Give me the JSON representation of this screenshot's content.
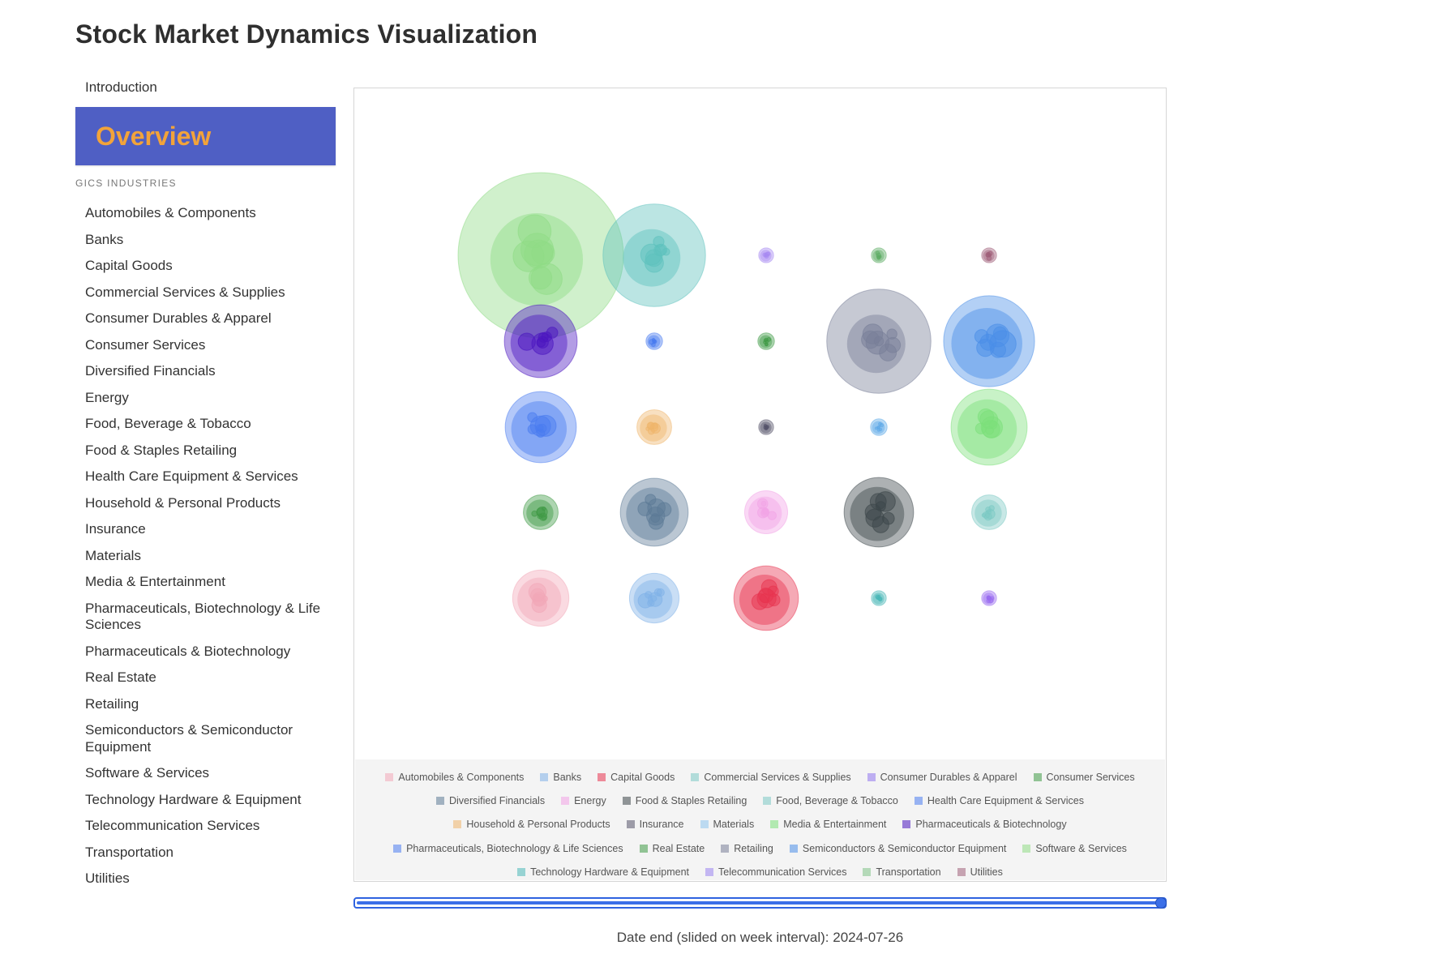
{
  "title": "Stock Market Dynamics Visualization",
  "nav": {
    "intro": "Introduction",
    "active": "Overview",
    "section_label": "GICS INDUSTRIES",
    "items": [
      "Automobiles & Components",
      "Banks",
      "Capital Goods",
      "Commercial Services & Supplies",
      "Consumer Durables & Apparel",
      "Consumer Services",
      "Diversified Financials",
      "Energy",
      "Food, Beverage & Tobacco",
      "Food & Staples Retailing",
      "Health Care Equipment & Services",
      "Household & Personal Products",
      "Insurance",
      "Materials",
      "Media & Entertainment",
      "Pharmaceuticals, Biotechnology & Life Sciences",
      "Pharmaceuticals & Biotechnology",
      "Real Estate",
      "Retailing",
      "Semiconductors & Semiconductor Equipment",
      "Software & Services",
      "Technology Hardware & Equipment",
      "Telecommunication Services",
      "Transportation",
      "Utilities"
    ]
  },
  "legend_rows": [
    [
      {
        "label": "Automobiles & Components",
        "color": "#f2a7b8"
      },
      {
        "label": "Banks",
        "color": "#7fb1e8"
      },
      {
        "label": "Capital Goods",
        "color": "#e8334f"
      },
      {
        "label": "Commercial Services & Supplies",
        "color": "#7cc9c4"
      },
      {
        "label": "Consumer Durables & Apparel",
        "color": "#8f74ee"
      },
      {
        "label": "Consumer Services",
        "color": "#3f9a45"
      }
    ],
    [
      {
        "label": "Diversified Financials",
        "color": "#5c7a96"
      },
      {
        "label": "Energy",
        "color": "#f2a3e6"
      },
      {
        "label": "Food & Staples Retailing",
        "color": "#3c4649"
      },
      {
        "label": "Food, Beverage & Tobacco",
        "color": "#7cc9c4"
      },
      {
        "label": "Health Care Equipment & Services",
        "color": "#4a7cf0"
      }
    ],
    [
      {
        "label": "Household & Personal Products",
        "color": "#efb56b"
      },
      {
        "label": "Insurance",
        "color": "#55546a"
      },
      {
        "label": "Materials",
        "color": "#8ec5ee"
      },
      {
        "label": "Media & Entertainment",
        "color": "#7be07a"
      },
      {
        "label": "Pharmaceuticals & Biotechnology",
        "color": "#4b16c0"
      }
    ],
    [
      {
        "label": "Pharmaceuticals, Biotechnology & Life Sciences",
        "color": "#4a7cf0"
      },
      {
        "label": "Real Estate",
        "color": "#3f9a45"
      },
      {
        "label": "Retailing",
        "color": "#787e97"
      },
      {
        "label": "Semiconductors & Semiconductor Equipment",
        "color": "#4a8ee8"
      },
      {
        "label": "Software & Services",
        "color": "#8fdc85"
      }
    ],
    [
      {
        "label": "Technology Hardware & Equipment",
        "color": "#4ab8b8"
      },
      {
        "label": "Telecommunication Services",
        "color": "#9a83f0"
      },
      {
        "label": "Transportation",
        "color": "#7fc287"
      },
      {
        "label": "Utilities",
        "color": "#a0607a"
      }
    ]
  ],
  "chart_data": {
    "type": "bubble-pack",
    "grid": {
      "rows": 5,
      "cols": 5
    },
    "bubbles": [
      {
        "industry": "Software & Services",
        "color": "#8fdc85",
        "radius": 1.0,
        "row": 0,
        "col": 0
      },
      {
        "industry": "Commercial Services & Supplies",
        "color": "#5ec2bd",
        "radius": 0.62,
        "row": 0,
        "col": 1
      },
      {
        "industry": "Telecommunication Services",
        "color": "#a88af2",
        "radius": 0.09,
        "row": 0,
        "col": 2
      },
      {
        "industry": "Transportation",
        "color": "#5fae66",
        "radius": 0.09,
        "row": 0,
        "col": 3
      },
      {
        "industry": "Utilities",
        "color": "#a0607a",
        "radius": 0.09,
        "row": 0,
        "col": 4
      },
      {
        "industry": "Pharmaceuticals & Biotechnology",
        "color": "#4b16c0",
        "radius": 0.44,
        "row": 1,
        "col": 0
      },
      {
        "industry": "Pharmaceuticals, Biotechnology & Life Sciences",
        "color": "#4a7cf0",
        "radius": 0.1,
        "row": 1,
        "col": 1
      },
      {
        "industry": "Consumer Services",
        "color": "#3f9a45",
        "radius": 0.1,
        "row": 1,
        "col": 2
      },
      {
        "industry": "Retailing",
        "color": "#787e97",
        "radius": 0.63,
        "row": 1,
        "col": 3
      },
      {
        "industry": "Semiconductors & Semiconductor Equipment",
        "color": "#4a8ee8",
        "radius": 0.55,
        "row": 1,
        "col": 4
      },
      {
        "industry": "Health Care Equipment & Services",
        "color": "#4a7cf0",
        "radius": 0.43,
        "row": 2,
        "col": 0
      },
      {
        "industry": "Household & Personal Products",
        "color": "#efb56b",
        "radius": 0.21,
        "row": 2,
        "col": 1
      },
      {
        "industry": "Insurance",
        "color": "#55546a",
        "radius": 0.09,
        "row": 2,
        "col": 2
      },
      {
        "industry": "Materials",
        "color": "#5ea9e8",
        "radius": 0.1,
        "row": 2,
        "col": 3
      },
      {
        "industry": "Media & Entertainment",
        "color": "#7be07a",
        "radius": 0.46,
        "row": 2,
        "col": 4
      },
      {
        "industry": "Real Estate",
        "color": "#3f9a45",
        "radius": 0.21,
        "row": 3,
        "col": 0
      },
      {
        "industry": "Diversified Financials",
        "color": "#5c7a96",
        "radius": 0.41,
        "row": 3,
        "col": 1
      },
      {
        "industry": "Energy",
        "color": "#f2a3e6",
        "radius": 0.26,
        "row": 3,
        "col": 2
      },
      {
        "industry": "Food & Staples Retailing",
        "color": "#3c4649",
        "radius": 0.42,
        "row": 3,
        "col": 3
      },
      {
        "industry": "Food, Beverage & Tobacco",
        "color": "#7cc9c4",
        "radius": 0.21,
        "row": 3,
        "col": 4
      },
      {
        "industry": "Automobiles & Components",
        "color": "#f2a7b8",
        "radius": 0.34,
        "row": 4,
        "col": 0
      },
      {
        "industry": "Banks",
        "color": "#7fb1e8",
        "radius": 0.3,
        "row": 4,
        "col": 1
      },
      {
        "industry": "Capital Goods",
        "color": "#e8334f",
        "radius": 0.39,
        "row": 4,
        "col": 2
      },
      {
        "industry": "Technology Hardware & Equipment",
        "color": "#4ab8b8",
        "radius": 0.09,
        "row": 4,
        "col": 3
      },
      {
        "industry": "Consumer Durables & Apparel",
        "color": "#9a6cf0",
        "radius": 0.09,
        "row": 4,
        "col": 4
      }
    ]
  },
  "slider": {
    "value": 100
  },
  "date_label": "Date end (slided on week interval): 2024-07-26"
}
